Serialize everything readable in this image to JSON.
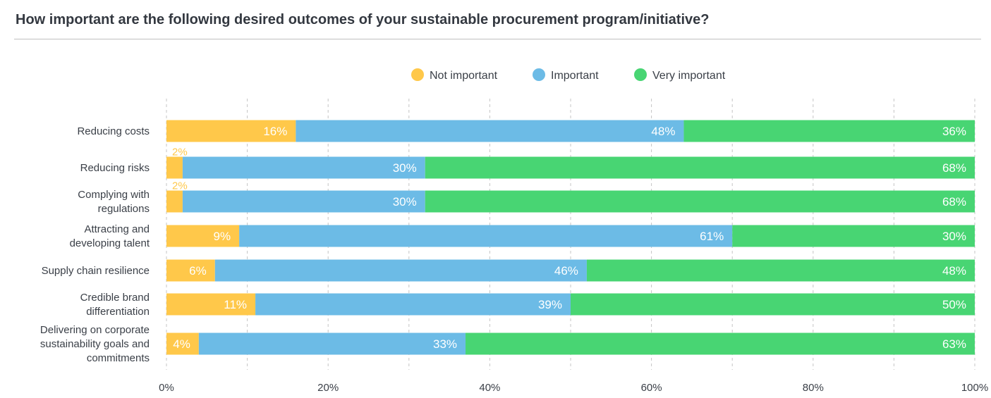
{
  "title": "How important are the following desired outcomes of your sustainable procurement program/initiative?",
  "colors": {
    "not_important": "#FFC84A",
    "important": "#6CBBE6",
    "very_important": "#48D573",
    "text": "#3a3f47",
    "grid": "#c4c4c4"
  },
  "chart_data": {
    "type": "bar",
    "orientation": "horizontal",
    "stacked": true,
    "categories": [
      "Reducing costs",
      "Reducing risks",
      "Complying with regulations",
      "Attracting and developing talent",
      "Supply chain resilience",
      "Credible brand differentiation",
      "Delivering on corporate sustainability goals and commitments"
    ],
    "category_lines": [
      [
        "Reducing costs"
      ],
      [
        "Reducing risks"
      ],
      [
        "Complying with",
        "regulations"
      ],
      [
        "Attracting and",
        "developing talent"
      ],
      [
        "Supply chain resilience"
      ],
      [
        "Credible brand",
        "differentiation"
      ],
      [
        "Delivering on corporate",
        "sustainability goals and",
        "commitments"
      ]
    ],
    "series": [
      {
        "name": "Not important",
        "color": "#FFC84A",
        "values": [
          16,
          2,
          2,
          9,
          6,
          11,
          4
        ]
      },
      {
        "name": "Important",
        "color": "#6CBBE6",
        "values": [
          48,
          30,
          30,
          61,
          46,
          39,
          33
        ]
      },
      {
        "name": "Very important",
        "color": "#48D573",
        "values": [
          36,
          68,
          68,
          30,
          48,
          50,
          63
        ]
      }
    ],
    "value_suffix": "%",
    "xlim": [
      0,
      100
    ],
    "xticks": [
      0,
      20,
      40,
      60,
      80,
      100
    ],
    "xtick_labels": [
      "0%",
      "20%",
      "40%",
      "60%",
      "80%",
      "100%"
    ],
    "grid": true,
    "legend_position": "top-center"
  }
}
